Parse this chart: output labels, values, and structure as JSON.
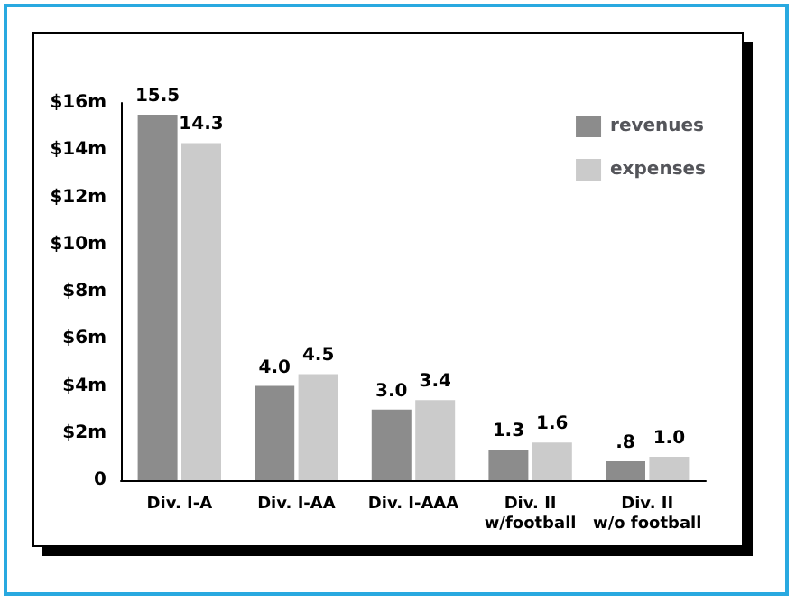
{
  "chart_data": {
    "type": "bar",
    "categories": [
      "Div. I-A",
      "Div. I-AA",
      "Div. I-AAA",
      "Div. II\nw/football",
      "Div. II\nw/o football"
    ],
    "series": [
      {
        "name": "revenues",
        "color": "#8c8c8c",
        "values": [
          15.5,
          4.0,
          3.0,
          1.3,
          0.8
        ],
        "value_labels": [
          "15.5",
          "4.0",
          "3.0",
          "1.3",
          ".8"
        ]
      },
      {
        "name": "expenses",
        "color": "#cbcbcb",
        "values": [
          14.3,
          4.5,
          3.4,
          1.6,
          1.0
        ],
        "value_labels": [
          "14.3",
          "4.5",
          "3.4",
          "1.6",
          "1.0"
        ]
      }
    ],
    "ylim": [
      0,
      16
    ],
    "yticks": [
      0,
      {
        "value": 2,
        "label": "$2m"
      },
      {
        "value": 4,
        "label": "$4m"
      },
      {
        "value": 6,
        "label": "$6m"
      },
      {
        "value": 8,
        "label": "$8m"
      },
      {
        "value": 10,
        "label": "$10m"
      },
      {
        "value": 12,
        "label": "$12m"
      },
      {
        "value": 14,
        "label": "$14m"
      },
      {
        "value": 16,
        "label": "$16m"
      }
    ],
    "grid": false,
    "legend": "top right"
  }
}
